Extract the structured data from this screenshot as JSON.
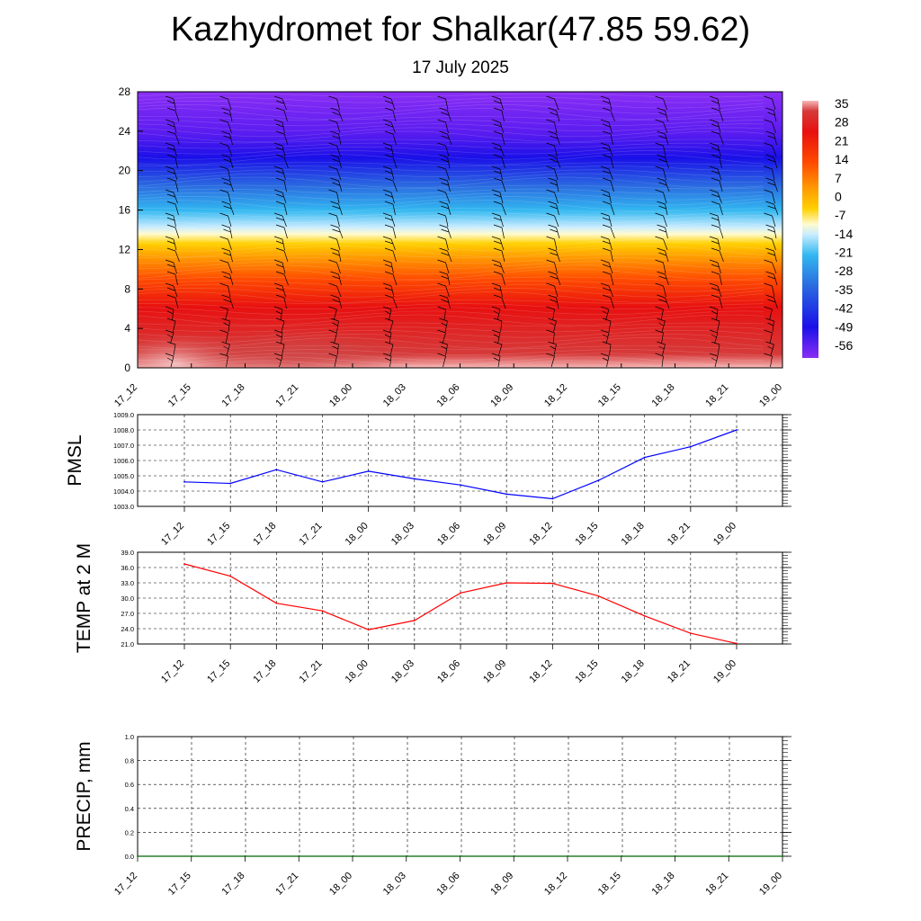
{
  "title": "Kazhydromet for Shalkar(47.85 59.62)",
  "subtitle": "17 July 2025",
  "chart_data": [
    {
      "type": "heatmap",
      "name": "cross-section",
      "y_ticks": [
        "0",
        "4",
        "8",
        "12",
        "16",
        "20",
        "24",
        "28"
      ],
      "ylim": [
        0,
        28
      ],
      "x_ticks": [
        "17_12",
        "17_15",
        "17_18",
        "17_21",
        "18_00",
        "18_03",
        "18_06",
        "18_09",
        "18_12",
        "18_15",
        "18_18",
        "18_21",
        "19_00"
      ],
      "colorbar_labels": [
        "35",
        "28",
        "21",
        "14",
        "7",
        "0",
        "-7",
        "-14",
        "-21",
        "-28",
        "-35",
        "-42",
        "-49",
        "-56"
      ],
      "wind_barbs": true
    },
    {
      "type": "line",
      "ylabel": "PMSL",
      "x": [
        "17_12",
        "17_15",
        "17_18",
        "17_21",
        "18_00",
        "18_03",
        "18_06",
        "18_09",
        "18_12",
        "18_15",
        "18_18",
        "18_21",
        "19_00"
      ],
      "values": [
        1004.6,
        1004.5,
        1005.4,
        1004.6,
        1005.3,
        1004.8,
        1004.4,
        1003.8,
        1003.5,
        1004.7,
        1006.2,
        1006.9,
        1008.0
      ],
      "ylim": [
        1003.0,
        1009.0
      ],
      "y_ticks": [
        "1003.0",
        "1004.0",
        "1005.0",
        "1006.0",
        "1007.0",
        "1008.0",
        "1009.0"
      ],
      "color": "#0000ff",
      "grid": true
    },
    {
      "type": "line",
      "ylabel": "TEMP at 2 M",
      "x": [
        "17_12",
        "17_15",
        "17_18",
        "17_21",
        "18_00",
        "18_03",
        "18_06",
        "18_09",
        "18_12",
        "18_15",
        "18_18",
        "18_21",
        "19_00"
      ],
      "values": [
        36.7,
        34.3,
        29.0,
        27.5,
        23.8,
        25.6,
        31.0,
        33.0,
        32.9,
        30.4,
        26.5,
        23.1,
        21.1
      ],
      "ylim": [
        21.0,
        39.0
      ],
      "y_ticks": [
        "21.0",
        "24.0",
        "27.0",
        "30.0",
        "33.0",
        "36.0",
        "39.0"
      ],
      "color": "#ff0000",
      "grid": true
    },
    {
      "type": "line",
      "ylabel": "PRECIP, mm",
      "x": [
        "17_12",
        "17_15",
        "17_18",
        "17_21",
        "18_00",
        "18_03",
        "18_06",
        "18_09",
        "18_12",
        "18_15",
        "18_18",
        "18_21",
        "19_00"
      ],
      "values": [
        0,
        0,
        0,
        0,
        0,
        0,
        0,
        0,
        0,
        0,
        0,
        0,
        0
      ],
      "ylim": [
        0.0,
        1.0
      ],
      "y_ticks": [
        "0.0",
        "0.2",
        "0.4",
        "0.6",
        "0.8",
        "1.0"
      ],
      "color": "#006400",
      "grid": true
    }
  ]
}
